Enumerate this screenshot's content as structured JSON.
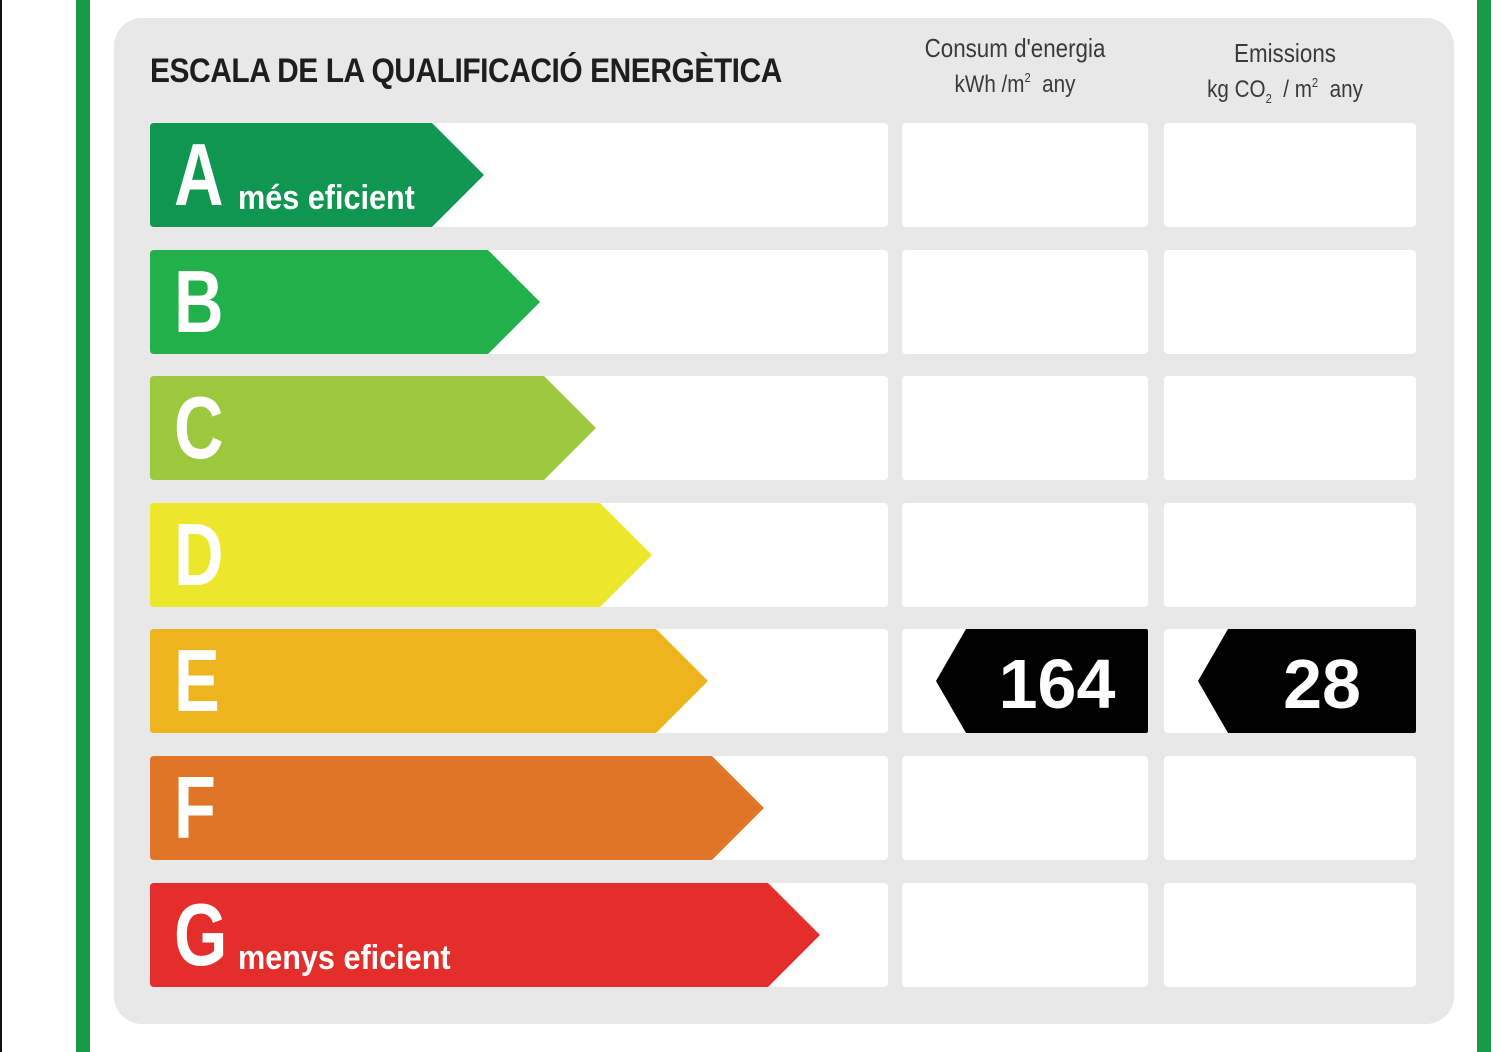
{
  "colors": {
    "frame_green": "#1a9a47",
    "panel_bg": "#e8e8e8",
    "indicator_bg": "#000000",
    "A": "#0f9650",
    "B": "#22b04a",
    "C": "#9cc83e",
    "D": "#ece72a",
    "E": "#eeb41e",
    "F": "#e07528",
    "G": "#e42e2b"
  },
  "label": {
    "title": "ESCALA DE LA QUALIFICACIÓ ENERGÈTICA",
    "energy_header": {
      "line1": "Consum d'energia",
      "unit_a": "kWh /m",
      "unit_sup": "2",
      "unit_b": "any"
    },
    "emissions_header": {
      "line1": "Emissions",
      "unit_a": "kg CO",
      "unit_sub": "2",
      "unit_b": "/ m",
      "unit_sup": "2",
      "unit_c": "any"
    },
    "classes": [
      {
        "letter": "A",
        "sublabel": "més eficient"
      },
      {
        "letter": "B",
        "sublabel": ""
      },
      {
        "letter": "C",
        "sublabel": ""
      },
      {
        "letter": "D",
        "sublabel": ""
      },
      {
        "letter": "E",
        "sublabel": ""
      },
      {
        "letter": "F",
        "sublabel": ""
      },
      {
        "letter": "G",
        "sublabel": "menys eficient"
      }
    ],
    "rating": {
      "class": "E",
      "energy_value": "164",
      "emissions_value": "28"
    }
  }
}
